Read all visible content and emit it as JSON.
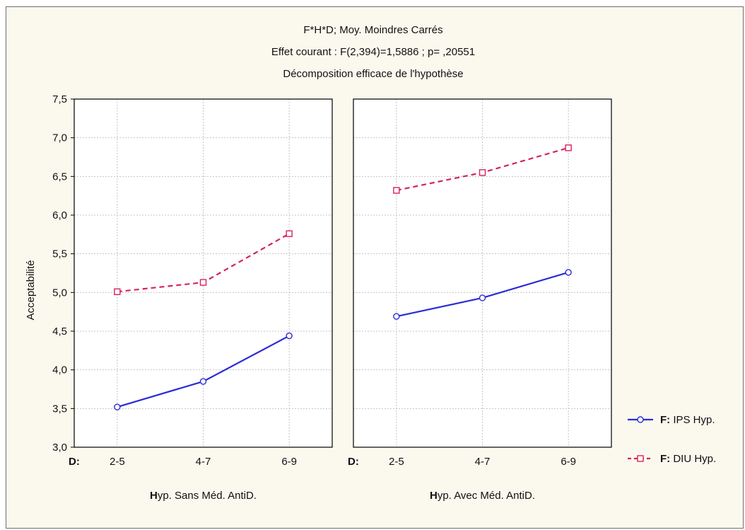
{
  "chart_data": {
    "type": "line",
    "title": "F*H*D; Moy. Moindres Carrés",
    "subtitle": "Effet courant : F(2,394)=1,5886  ; p= ,20551",
    "subtitle2": "Décomposition efficace de l'hypothèse",
    "ylabel": "Acceptabilité",
    "ylim": [
      3.0,
      7.5
    ],
    "yticks": [
      "3,0",
      "3,5",
      "4,0",
      "4,5",
      "5,0",
      "5,5",
      "6,0",
      "6,5",
      "7,0",
      "7,5"
    ],
    "grid": true,
    "legend_position": "right",
    "x_factor_label": "D:",
    "categories": [
      "2-5",
      "4-7",
      "6-9"
    ],
    "panels": [
      {
        "xlabel_bold": "H",
        "xlabel_rest": "yp. Sans Méd. AntiD.",
        "series": [
          {
            "name": "F: IPS Hyp.",
            "values": [
              3.52,
              3.85,
              4.44
            ]
          },
          {
            "name": "F: DIU Hyp.",
            "values": [
              5.01,
              5.13,
              5.76
            ]
          }
        ]
      },
      {
        "xlabel_bold": "H",
        "xlabel_rest": "yp. Avec Méd. AntiD.",
        "series": [
          {
            "name": "F: IPS Hyp.",
            "values": [
              4.69,
              4.93,
              5.26
            ]
          },
          {
            "name": "F: DIU Hyp.",
            "values": [
              6.32,
              6.55,
              6.87
            ]
          }
        ]
      }
    ],
    "legend": [
      {
        "prefix": "F:",
        "text": "IPS Hyp.",
        "color": "#2b2bd6",
        "marker": "circle",
        "dash": "solid"
      },
      {
        "prefix": "F:",
        "text": "DIU Hyp.",
        "color": "#d6245a",
        "marker": "square",
        "dash": "dashed"
      }
    ]
  }
}
